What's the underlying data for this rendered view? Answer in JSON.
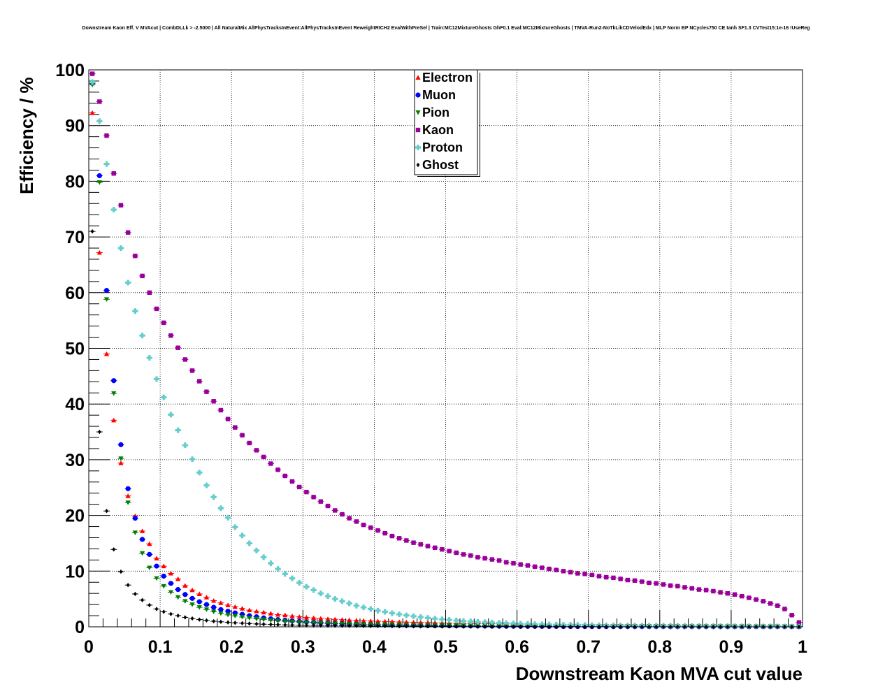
{
  "chart_data": {
    "type": "scatter",
    "title": "Downstream Kaon Eff. V MVAcut | CombDLLk > -2.5000 | All NaturalMix AllPhysTracksInEvent:AllPhysTracksInEvent ReweightRICH2 EvalWithPreSel | Train:MC12MixtureGhosts GhF0.1 Eval:MC12MixtureGhosts | TMVA-Run2-NoTkLikCDVelodEdx | MLP Norm BP NCycles750 CE tanh SF1.3 CVTest15:1e-16 !UseReg",
    "xlabel": "Downstream Kaon MVA cut value",
    "ylabel": "Efficiency / %",
    "xlim": [
      0,
      1
    ],
    "ylim": [
      0,
      100
    ],
    "x_ticks": [
      "0",
      "0.1",
      "0.2",
      "0.3",
      "0.4",
      "0.5",
      "0.6",
      "0.7",
      "0.8",
      "0.9",
      "1"
    ],
    "y_ticks": [
      "0",
      "10",
      "20",
      "30",
      "40",
      "50",
      "60",
      "70",
      "80",
      "90",
      "100"
    ],
    "grid": true,
    "legend_position": "top-center",
    "x": [
      0.005,
      0.015,
      0.025,
      0.035,
      0.045,
      0.055,
      0.065,
      0.075,
      0.085,
      0.095,
      0.105,
      0.115,
      0.125,
      0.135,
      0.145,
      0.155,
      0.165,
      0.175,
      0.185,
      0.195,
      0.205,
      0.215,
      0.225,
      0.235,
      0.245,
      0.255,
      0.265,
      0.275,
      0.285,
      0.295,
      0.305,
      0.315,
      0.325,
      0.335,
      0.345,
      0.355,
      0.365,
      0.375,
      0.385,
      0.395,
      0.405,
      0.415,
      0.425,
      0.435,
      0.445,
      0.455,
      0.465,
      0.475,
      0.485,
      0.495,
      0.505,
      0.515,
      0.525,
      0.535,
      0.545,
      0.555,
      0.565,
      0.575,
      0.585,
      0.595,
      0.605,
      0.615,
      0.625,
      0.635,
      0.645,
      0.655,
      0.665,
      0.675,
      0.685,
      0.695,
      0.705,
      0.715,
      0.725,
      0.735,
      0.745,
      0.755,
      0.765,
      0.775,
      0.785,
      0.795,
      0.805,
      0.815,
      0.825,
      0.835,
      0.845,
      0.855,
      0.865,
      0.875,
      0.885,
      0.895,
      0.905,
      0.915,
      0.925,
      0.935,
      0.945,
      0.955,
      0.965,
      0.975,
      0.985,
      0.995
    ],
    "series": [
      {
        "name": "Electron",
        "color": "#ff0000",
        "marker": "triangle-up",
        "values": [
          92.3,
          67.2,
          49.0,
          37.1,
          29.4,
          23.5,
          19.9,
          17.2,
          14.9,
          12.3,
          10.9,
          9.6,
          8.6,
          7.4,
          6.6,
          5.9,
          5.3,
          4.7,
          4.3,
          3.9,
          3.6,
          3.3,
          3.0,
          2.8,
          2.6,
          2.4,
          2.2,
          2.1,
          1.95,
          1.8,
          1.7,
          1.6,
          1.5,
          1.42,
          1.35,
          1.28,
          1.22,
          1.16,
          1.1,
          1.05,
          1.0,
          0.96,
          0.92,
          0.88,
          0.85,
          0.82,
          0.79,
          0.76,
          0.73,
          0.7,
          0.68,
          0.66,
          0.64,
          0.62,
          0.6,
          0.58,
          0.56,
          0.54,
          0.52,
          0.5,
          0.49,
          0.48,
          0.47,
          0.46,
          0.45,
          0.44,
          0.43,
          0.42,
          0.41,
          0.4,
          0.39,
          0.38,
          0.37,
          0.36,
          0.35,
          0.34,
          0.33,
          0.32,
          0.31,
          0.3,
          0.29,
          0.28,
          0.27,
          0.26,
          0.25,
          0.24,
          0.23,
          0.22,
          0.21,
          0.2,
          0.19,
          0.18,
          0.17,
          0.16,
          0.15,
          0.14,
          0.13,
          0.12,
          0.1,
          0.05
        ]
      },
      {
        "name": "Muon",
        "color": "#0000ff",
        "marker": "circle",
        "values": [
          97.6,
          81.0,
          60.4,
          44.2,
          32.7,
          24.8,
          19.5,
          15.7,
          13.0,
          10.9,
          9.1,
          7.8,
          6.7,
          5.8,
          5.1,
          4.5,
          4.0,
          3.5,
          3.1,
          2.8,
          2.5,
          2.25,
          2.0,
          1.8,
          1.6,
          1.45,
          1.3,
          1.18,
          1.07,
          0.97,
          0.88,
          0.8,
          0.73,
          0.67,
          0.61,
          0.56,
          0.51,
          0.47,
          0.43,
          0.4,
          0.37,
          0.34,
          0.31,
          0.29,
          0.27,
          0.25,
          0.23,
          0.21,
          0.2,
          0.19,
          0.18,
          0.17,
          0.16,
          0.15,
          0.14,
          0.13,
          0.12,
          0.11,
          0.1,
          0.1,
          0.09,
          0.09,
          0.08,
          0.08,
          0.07,
          0.07,
          0.06,
          0.06,
          0.06,
          0.05,
          0.05,
          0.05,
          0.04,
          0.04,
          0.04,
          0.04,
          0.03,
          0.03,
          0.03,
          0.03,
          0.03,
          0.02,
          0.02,
          0.02,
          0.02,
          0.02,
          0.02,
          0.01,
          0.01,
          0.01,
          0.01,
          0.01,
          0.01,
          0.01,
          0.01,
          0.01,
          0.01,
          0.0,
          0.0,
          0.0
        ]
      },
      {
        "name": "Pion",
        "color": "#008000",
        "marker": "triangle-down",
        "values": [
          97.3,
          79.8,
          58.8,
          41.9,
          30.2,
          22.3,
          16.9,
          13.2,
          10.6,
          8.7,
          7.3,
          6.2,
          5.3,
          4.6,
          4.0,
          3.5,
          3.1,
          2.7,
          2.4,
          2.15,
          1.95,
          1.75,
          1.58,
          1.43,
          1.3,
          1.18,
          1.08,
          0.99,
          0.91,
          0.84,
          0.77,
          0.71,
          0.66,
          0.61,
          0.57,
          0.53,
          0.5,
          0.47,
          0.44,
          0.41,
          0.39,
          0.37,
          0.35,
          0.33,
          0.31,
          0.3,
          0.29,
          0.28,
          0.27,
          0.26,
          0.25,
          0.24,
          0.23,
          0.22,
          0.21,
          0.2,
          0.2,
          0.19,
          0.19,
          0.18,
          0.18,
          0.17,
          0.17,
          0.16,
          0.16,
          0.15,
          0.15,
          0.15,
          0.14,
          0.14,
          0.14,
          0.13,
          0.13,
          0.13,
          0.12,
          0.12,
          0.12,
          0.11,
          0.11,
          0.11,
          0.11,
          0.1,
          0.1,
          0.1,
          0.1,
          0.09,
          0.09,
          0.09,
          0.09,
          0.08,
          0.08,
          0.08,
          0.08,
          0.07,
          0.07,
          0.07,
          0.06,
          0.06,
          0.05,
          0.03
        ]
      },
      {
        "name": "Kaon",
        "color": "#990099",
        "marker": "square",
        "values": [
          99.3,
          94.3,
          88.2,
          81.4,
          75.7,
          70.8,
          66.6,
          63.0,
          60.0,
          57.1,
          54.6,
          52.3,
          50.1,
          48.0,
          46.0,
          44.1,
          42.2,
          40.5,
          38.9,
          37.3,
          35.8,
          34.4,
          33.0,
          31.7,
          30.5,
          29.3,
          28.2,
          27.1,
          26.1,
          25.1,
          24.2,
          23.3,
          22.5,
          21.7,
          20.9,
          20.2,
          19.5,
          18.9,
          18.3,
          17.8,
          17.3,
          16.8,
          16.3,
          15.9,
          15.5,
          15.1,
          14.8,
          14.5,
          14.2,
          13.9,
          13.6,
          13.3,
          13.0,
          12.8,
          12.5,
          12.3,
          12.1,
          11.9,
          11.6,
          11.4,
          11.2,
          11.0,
          10.8,
          10.6,
          10.4,
          10.2,
          10.0,
          9.8,
          9.6,
          9.5,
          9.3,
          9.1,
          8.9,
          8.8,
          8.6,
          8.4,
          8.3,
          8.1,
          7.9,
          7.8,
          7.6,
          7.4,
          7.3,
          7.1,
          6.9,
          6.7,
          6.6,
          6.4,
          6.2,
          6.0,
          5.8,
          5.5,
          5.2,
          4.9,
          4.6,
          4.2,
          3.8,
          3.2,
          2.1,
          0.8
        ]
      },
      {
        "name": "Proton",
        "color": "#66cccc",
        "marker": "cross",
        "values": [
          97.8,
          90.8,
          83.1,
          74.9,
          68.0,
          61.8,
          56.7,
          52.3,
          48.3,
          44.5,
          41.2,
          38.1,
          35.3,
          32.6,
          30.1,
          27.7,
          25.4,
          23.3,
          21.3,
          19.6,
          17.9,
          16.4,
          15.0,
          13.7,
          12.5,
          11.4,
          10.4,
          9.5,
          8.7,
          7.9,
          7.2,
          6.6,
          6.0,
          5.5,
          5.0,
          4.6,
          4.2,
          3.8,
          3.5,
          3.2,
          2.9,
          2.7,
          2.45,
          2.25,
          2.05,
          1.9,
          1.75,
          1.6,
          1.47,
          1.35,
          1.24,
          1.14,
          1.05,
          0.97,
          0.9,
          0.83,
          0.77,
          0.71,
          0.66,
          0.61,
          0.57,
          0.53,
          0.49,
          0.46,
          0.43,
          0.4,
          0.37,
          0.35,
          0.33,
          0.31,
          0.29,
          0.27,
          0.25,
          0.24,
          0.22,
          0.21,
          0.2,
          0.19,
          0.18,
          0.17,
          0.16,
          0.15,
          0.14,
          0.13,
          0.12,
          0.12,
          0.11,
          0.1,
          0.1,
          0.09,
          0.09,
          0.08,
          0.08,
          0.07,
          0.07,
          0.06,
          0.06,
          0.05,
          0.04,
          0.03
        ]
      },
      {
        "name": "Ghost",
        "color": "#000000",
        "marker": "diamond",
        "values": [
          71.0,
          35.0,
          20.8,
          13.9,
          9.9,
          7.5,
          5.9,
          4.8,
          3.9,
          3.2,
          2.7,
          2.3,
          2.0,
          1.7,
          1.5,
          1.3,
          1.15,
          1.0,
          0.9,
          0.8,
          0.72,
          0.65,
          0.58,
          0.52,
          0.47,
          0.43,
          0.39,
          0.35,
          0.32,
          0.29,
          0.27,
          0.25,
          0.23,
          0.21,
          0.19,
          0.18,
          0.17,
          0.16,
          0.15,
          0.14,
          0.13,
          0.12,
          0.11,
          0.1,
          0.1,
          0.09,
          0.09,
          0.08,
          0.08,
          0.07,
          0.07,
          0.06,
          0.06,
          0.06,
          0.05,
          0.05,
          0.05,
          0.04,
          0.04,
          0.04,
          0.04,
          0.03,
          0.03,
          0.03,
          0.03,
          0.03,
          0.02,
          0.02,
          0.02,
          0.02,
          0.02,
          0.02,
          0.02,
          0.01,
          0.01,
          0.01,
          0.01,
          0.01,
          0.01,
          0.01,
          0.01,
          0.01,
          0.01,
          0.01,
          0.01,
          0.0,
          0.0,
          0.0,
          0.0,
          0.0,
          0.0,
          0.0,
          0.0,
          0.0,
          0.0,
          0.0,
          0.0,
          0.0,
          0.0,
          0.0
        ]
      }
    ]
  }
}
